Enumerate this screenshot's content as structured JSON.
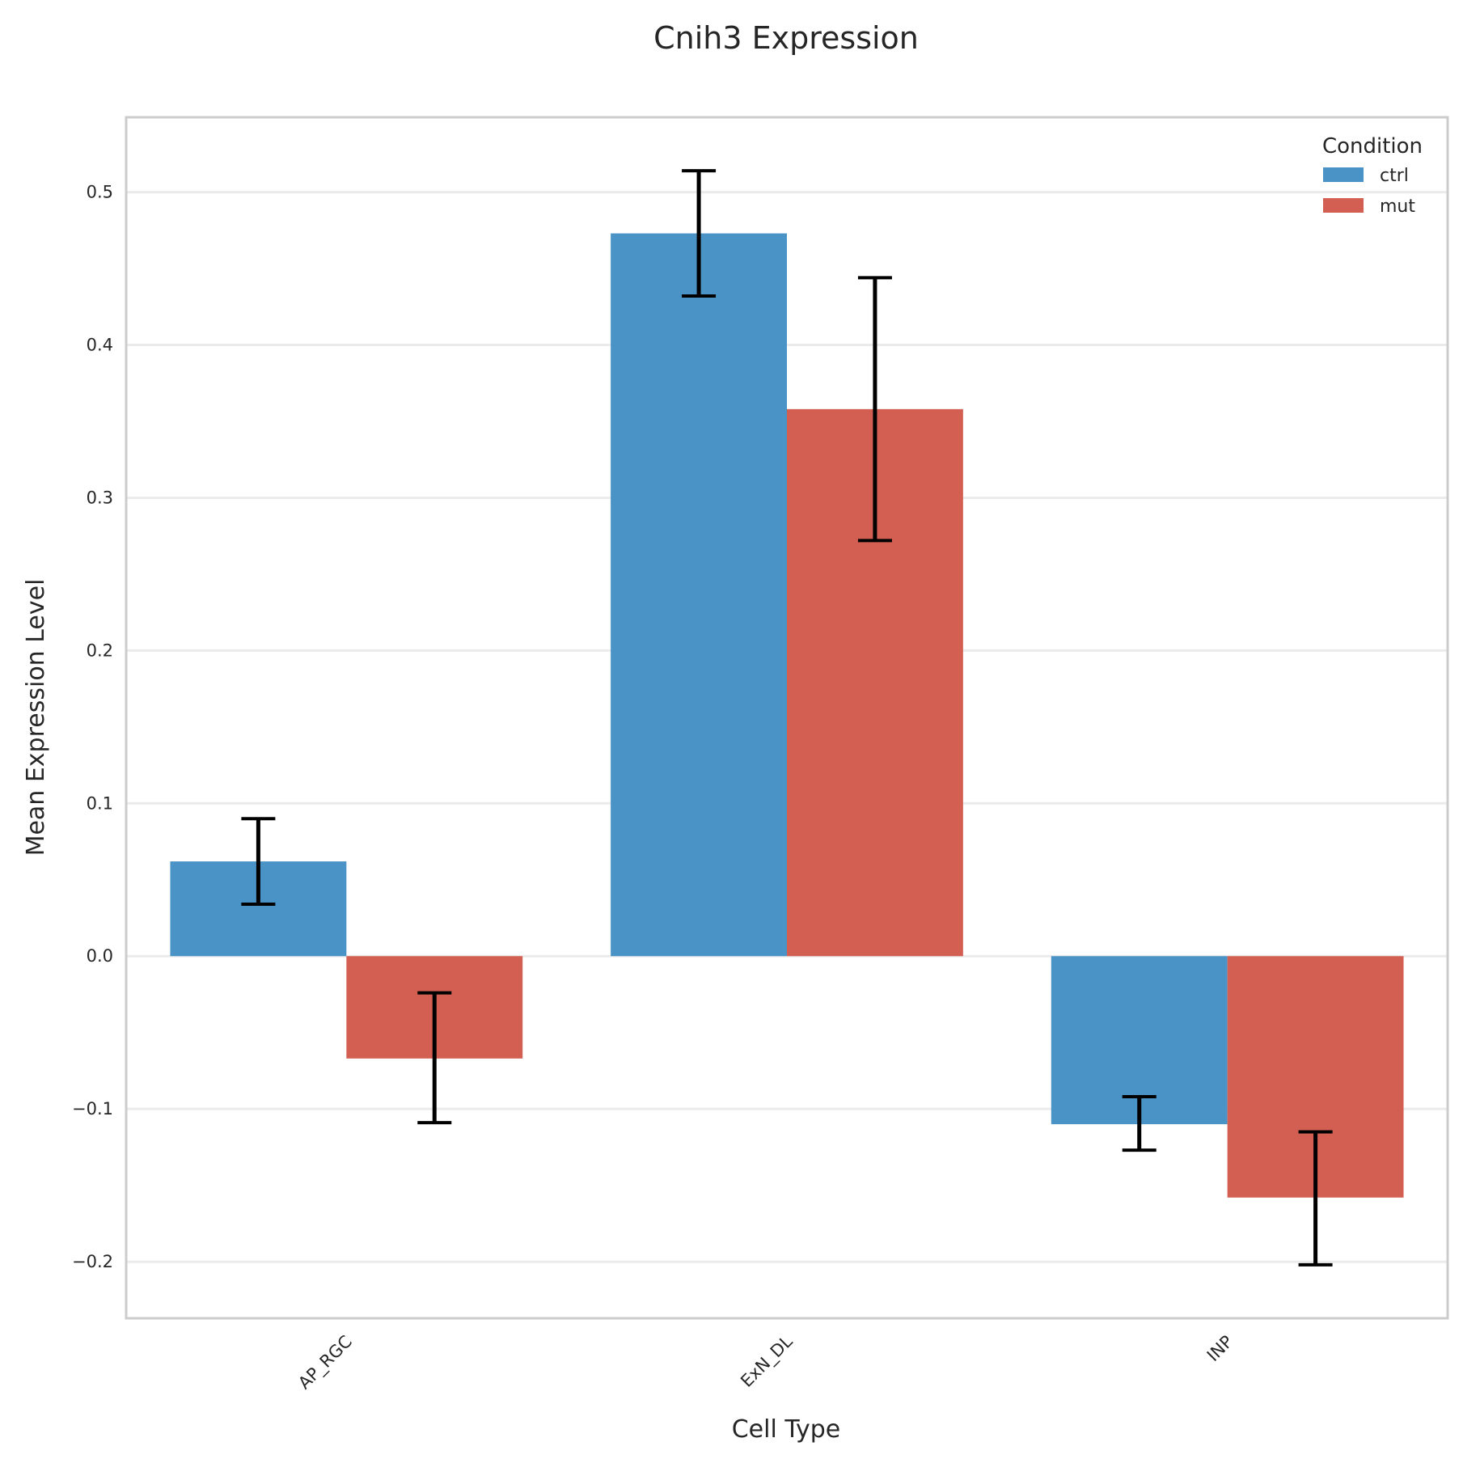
{
  "chart_data": {
    "type": "bar",
    "title": "Cnih3 Expression",
    "xlabel": "Cell Type",
    "ylabel": "Mean Expression Level",
    "categories": [
      "AP_RGC",
      "ExN_DL",
      "INP"
    ],
    "series": [
      {
        "name": "ctrl",
        "color": "#4a93c6",
        "values": [
          0.062,
          0.473,
          -0.11
        ],
        "error_low": [
          0.034,
          0.432,
          -0.127
        ],
        "error_high": [
          0.09,
          0.514,
          -0.092
        ]
      },
      {
        "name": "mut",
        "color": "#d35f52",
        "values": [
          -0.067,
          0.358,
          -0.158
        ],
        "error_low": [
          -0.109,
          0.272,
          -0.202
        ],
        "error_high": [
          -0.024,
          0.444,
          -0.115
        ]
      }
    ],
    "ylim": [
      -0.237,
      0.549
    ],
    "yticks": [
      -0.2,
      -0.1,
      0.0,
      0.1,
      0.2,
      0.3,
      0.4,
      0.5
    ],
    "ytick_labels": [
      "−0.2",
      "−0.1",
      "0.0",
      "0.1",
      "0.2",
      "0.3",
      "0.4",
      "0.5"
    ],
    "grid": "horizontal",
    "legend": {
      "title": "Condition",
      "placement": "top-right",
      "entries": [
        "ctrl",
        "mut"
      ]
    }
  }
}
